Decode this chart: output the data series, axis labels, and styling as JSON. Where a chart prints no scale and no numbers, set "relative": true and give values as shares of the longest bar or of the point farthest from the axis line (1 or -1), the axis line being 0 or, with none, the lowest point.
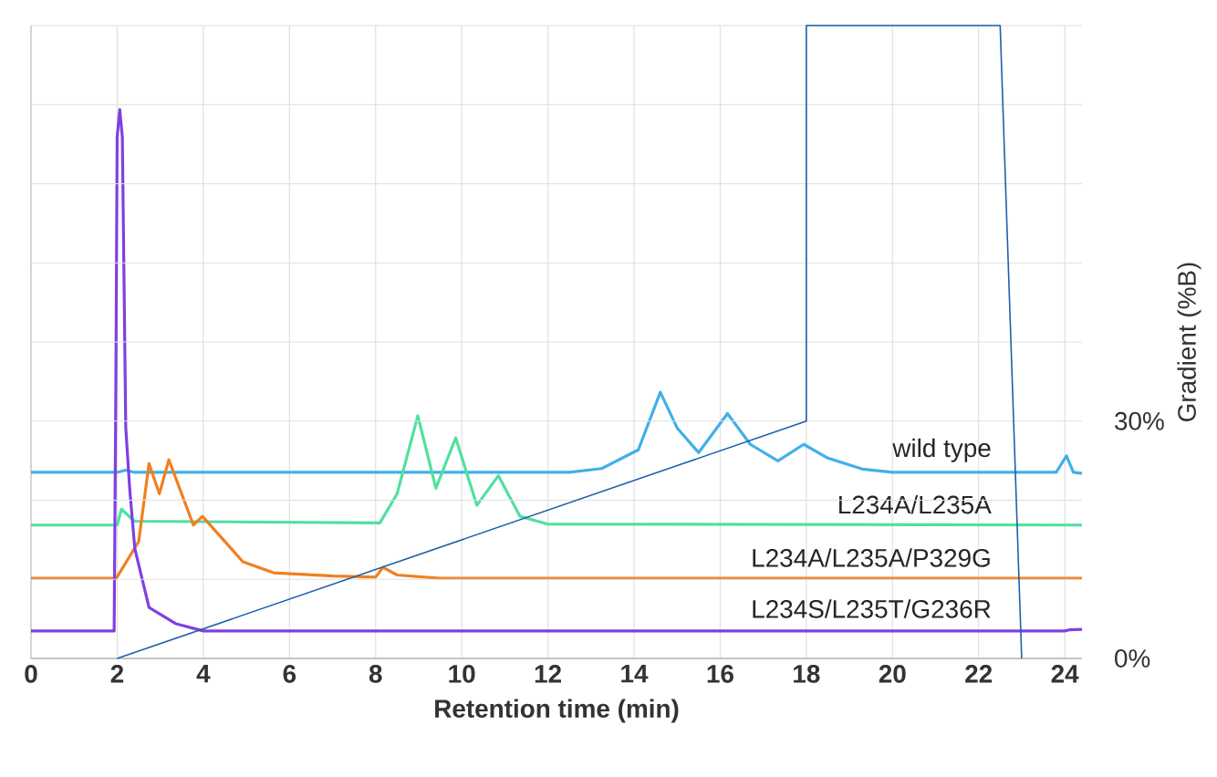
{
  "chart_data": [
    {
      "type": "line",
      "relative": true,
      "xlabel": "Retention time (min)",
      "xlim": [
        0,
        24.4
      ],
      "xticks": [
        0,
        2,
        4,
        6,
        8,
        10,
        12,
        14,
        16,
        18,
        20,
        22,
        24
      ],
      "grid": "x",
      "series": [
        {
          "name": "wild type",
          "color": "#40b0e8",
          "x": [
            0,
            2.0,
            2.2,
            2.4,
            12.5,
            13.25,
            14.1,
            14.61,
            15.0,
            15.5,
            16.17,
            16.7,
            17.34,
            17.94,
            18.5,
            19.3,
            20,
            23.8,
            24.04,
            24.2,
            24.4
          ],
          "values": [
            0.339,
            0.339,
            0.343,
            0.339,
            0.339,
            0.346,
            0.38,
            0.485,
            0.42,
            0.375,
            0.446,
            0.39,
            0.36,
            0.39,
            0.365,
            0.345,
            0.339,
            0.339,
            0.369,
            0.339,
            0.337
          ]
        },
        {
          "name": "L234A/L235A",
          "color": "#50e0a0",
          "x": [
            0,
            2.0,
            2.1,
            2.4,
            8.1,
            8.5,
            8.98,
            9.4,
            9.86,
            10.35,
            10.85,
            11.35,
            11.98,
            24.4
          ],
          "values": [
            0.243,
            0.243,
            0.272,
            0.25,
            0.247,
            0.3,
            0.442,
            0.31,
            0.402,
            0.279,
            0.333,
            0.259,
            0.245,
            0.243
          ]
        },
        {
          "name": "L234A/L235A/P329G",
          "color": "#f08020",
          "x": [
            0,
            1.98,
            2.5,
            2.74,
            2.98,
            3.2,
            3.77,
            3.98,
            4.92,
            5.63,
            7.03,
            8.0,
            8.17,
            8.5,
            9.5,
            24.4
          ],
          "values": [
            0.146,
            0.146,
            0.213,
            0.355,
            0.3,
            0.362,
            0.243,
            0.259,
            0.176,
            0.156,
            0.15,
            0.148,
            0.166,
            0.152,
            0.146,
            0.146
          ]
        },
        {
          "name": "L234S/L235T/G236R",
          "color": "#8040e0",
          "x": [
            0,
            1.93,
            1.97,
            2.0,
            2.06,
            2.12,
            2.2,
            2.29,
            2.41,
            2.74,
            3.37,
            4.0,
            24.0,
            24.1,
            24.4
          ],
          "values": [
            0.05,
            0.05,
            0.5,
            0.95,
            1.0,
            0.95,
            0.42,
            0.31,
            0.2,
            0.093,
            0.063,
            0.05,
            0.05,
            0.052,
            0.053
          ]
        }
      ]
    },
    {
      "type": "line",
      "y2label": "Gradient (%B)",
      "xlim": [
        0,
        24.4
      ],
      "y2lim": [
        0,
        80
      ],
      "y2ticks": [
        {
          "value": 0,
          "label": "0%"
        },
        {
          "value": 10,
          "label": null
        },
        {
          "value": 20,
          "label": null
        },
        {
          "value": 30,
          "label": "30%"
        },
        {
          "value": 40,
          "label": null
        },
        {
          "value": 50,
          "label": null
        },
        {
          "value": 60,
          "label": null
        },
        {
          "value": 70,
          "label": null
        },
        {
          "value": 80,
          "label": null
        }
      ],
      "grid": "y",
      "tick_labels": "y",
      "series": [
        {
          "color": "#1f5fa8",
          "axis": "y2",
          "x": [
            2,
            18,
            18,
            22.5,
            23
          ],
          "values": [
            0,
            30,
            80,
            80,
            0
          ]
        }
      ]
    }
  ]
}
